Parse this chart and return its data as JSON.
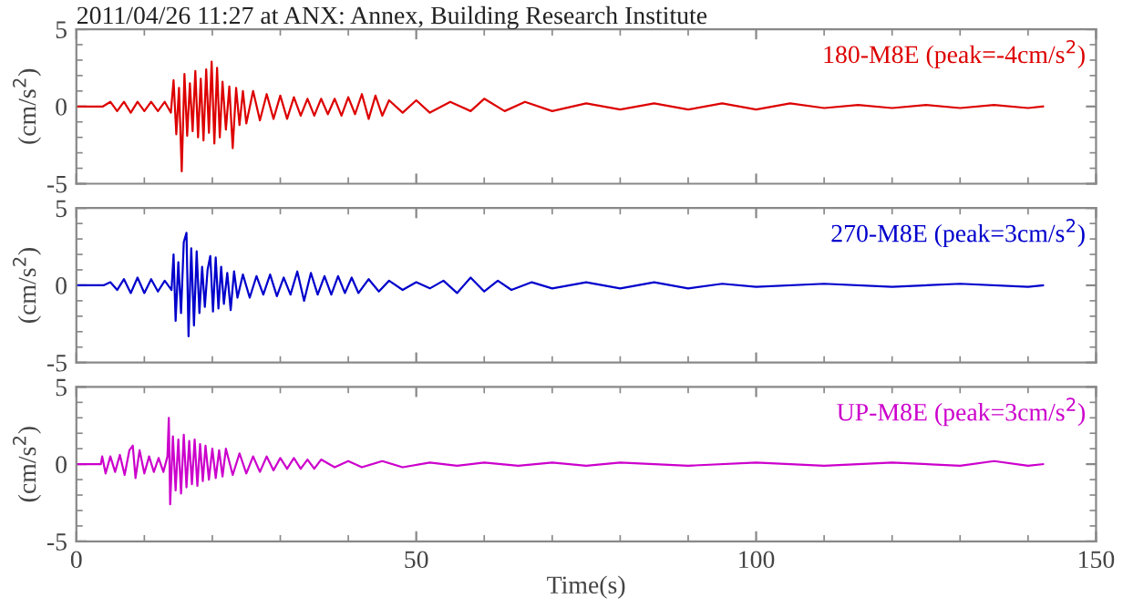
{
  "chart_data": [
    {
      "type": "line",
      "title": "2011/04/26 11:27 at ANX: Annex, Building Research Institute",
      "ylabel": "(cm/s$^{2}$)",
      "xlim": [
        0,
        150
      ],
      "ylim": [
        -5,
        5
      ],
      "xticks": [
        0,
        50,
        100,
        150
      ],
      "yticks": [
        -5,
        0,
        5
      ],
      "tick_labels": "y",
      "legend": false,
      "grid": false,
      "series": [
        {
          "name": "180-M8E (peak=-4cm/s$^{2}$)",
          "color": "#dd0000",
          "x": [
            0,
            3.9,
            5,
            6,
            7,
            8,
            9,
            10,
            11,
            12,
            13,
            13.9,
            14.3,
            14.7,
            15.1,
            15.5,
            15.9,
            16.3,
            16.7,
            17.1,
            17.5,
            17.9,
            18.3,
            18.7,
            19.1,
            19.5,
            19.9,
            20.3,
            20.7,
            21.1,
            21.5,
            22,
            22.5,
            23,
            23.5,
            24,
            24.5,
            25,
            26,
            27,
            28,
            29,
            30,
            31,
            32,
            33,
            34,
            35,
            36,
            37,
            38,
            39,
            40,
            41,
            42,
            43,
            44,
            45,
            46,
            48,
            50,
            52,
            55,
            58,
            60,
            63,
            66,
            70,
            75,
            80,
            85,
            90,
            95,
            100,
            105,
            110,
            115,
            120,
            125,
            130,
            135,
            140,
            142.2
          ],
          "values": [
            0,
            0,
            0.3,
            -0.3,
            0.3,
            -0.4,
            0.3,
            -0.3,
            0.3,
            -0.3,
            0.3,
            -0.4,
            1.7,
            -1.8,
            1.2,
            -4.2,
            2.1,
            -1.9,
            1.5,
            -1.6,
            2.3,
            -2.0,
            1.8,
            -2.2,
            2.4,
            -1.7,
            2.9,
            -2.4,
            2.5,
            -2.0,
            1.6,
            -1.5,
            1.3,
            -2.7,
            1.2,
            -1.2,
            1.0,
            -1.1,
            1.0,
            -0.9,
            0.8,
            -0.8,
            0.7,
            -0.8,
            0.6,
            -0.6,
            0.5,
            -0.6,
            0.5,
            -0.5,
            0.5,
            -0.6,
            0.6,
            -0.5,
            0.8,
            -0.8,
            0.7,
            -0.6,
            0.4,
            -0.4,
            0.4,
            -0.4,
            0.3,
            -0.3,
            0.5,
            -0.3,
            0.3,
            -0.3,
            0.2,
            -0.2,
            0.2,
            -0.2,
            0.2,
            -0.2,
            0.2,
            -0.1,
            0.1,
            -0.1,
            0.1,
            -0.1,
            0.1,
            -0.1,
            0
          ]
        }
      ]
    },
    {
      "type": "line",
      "ylabel": "(cm/s$^{2}$)",
      "xlim": [
        0,
        150
      ],
      "ylim": [
        -5,
        5
      ],
      "xticks": [
        0,
        50,
        100,
        150
      ],
      "yticks": [
        -5,
        0,
        5
      ],
      "tick_labels": "y",
      "legend": false,
      "grid": false,
      "series": [
        {
          "name": "270-M8E (peak=3cm/s$^{2}$)",
          "color": "#0000cc",
          "x": [
            0,
            4,
            5,
            6,
            7,
            8,
            9,
            10,
            11,
            12,
            13,
            14,
            14.3,
            14.6,
            15,
            15.4,
            15.8,
            16.2,
            16.5,
            16.9,
            17.3,
            17.7,
            18.1,
            18.5,
            18.9,
            19.3,
            19.7,
            20.1,
            20.5,
            20.9,
            21.3,
            21.7,
            22.2,
            22.7,
            23.2,
            23.7,
            24.5,
            25.5,
            26.5,
            27.5,
            28.5,
            29.5,
            30.5,
            31.5,
            32.5,
            33.5,
            34.5,
            35.5,
            36.5,
            37.5,
            38.5,
            39.5,
            40.5,
            41.5,
            43,
            44.5,
            46,
            48,
            50,
            52,
            54,
            56,
            58,
            60,
            62,
            64,
            67,
            70,
            75,
            80,
            85,
            90,
            95,
            100,
            110,
            120,
            130,
            140,
            142.2
          ],
          "values": [
            0,
            0,
            0.2,
            -0.3,
            0.4,
            -0.5,
            0.5,
            -0.5,
            0.4,
            -0.4,
            0.3,
            -0.3,
            2.0,
            -2.3,
            1.5,
            -1.8,
            2.8,
            3.4,
            -3.3,
            2.4,
            -2.6,
            2.2,
            -1.8,
            1.2,
            -1.4,
            1.0,
            1.9,
            -1.7,
            1.8,
            -1.5,
            1.2,
            -1.2,
            0.8,
            -1.6,
            0.9,
            -0.8,
            0.7,
            -0.8,
            0.6,
            -0.6,
            0.7,
            -0.7,
            0.5,
            -0.6,
            0.9,
            -1.0,
            0.8,
            -0.6,
            0.6,
            -0.6,
            0.6,
            -0.5,
            0.5,
            -0.5,
            0.4,
            -0.4,
            0.3,
            -0.3,
            0.2,
            -0.2,
            0.3,
            -0.5,
            0.5,
            -0.4,
            0.3,
            -0.3,
            0.2,
            -0.2,
            0.2,
            -0.2,
            0.2,
            -0.2,
            0.1,
            -0.1,
            0.1,
            -0.1,
            0.1,
            -0.1,
            0
          ]
        }
      ]
    },
    {
      "type": "line",
      "ylabel": "(cm/s$^{2}$)",
      "xlabel": "Time(s)",
      "xlim": [
        0,
        150
      ],
      "ylim": [
        -5,
        5
      ],
      "xticks": [
        0,
        50,
        100,
        150
      ],
      "yticks": [
        -5,
        0,
        5
      ],
      "legend": false,
      "grid": false,
      "series": [
        {
          "name": "UP-M8E (peak=3cm/s$^{2}$)",
          "color": "#cc00cc",
          "x": [
            0,
            3.6,
            3.8,
            4.3,
            5,
            5.7,
            6.4,
            7.1,
            7.8,
            8.3,
            8.7,
            9.3,
            10,
            10.7,
            11.4,
            12.1,
            12.8,
            13.4,
            13.6,
            13.8,
            14.2,
            14.6,
            15,
            15.4,
            15.8,
            16.2,
            16.6,
            17,
            17.4,
            17.8,
            18.2,
            18.6,
            19,
            19.5,
            20,
            20.5,
            21,
            21.5,
            22,
            23,
            24,
            25,
            26,
            27,
            28,
            29,
            30,
            31,
            32,
            33,
            34,
            35,
            36,
            38,
            40,
            42,
            45,
            48,
            52,
            56,
            60,
            65,
            70,
            75,
            80,
            90,
            100,
            110,
            120,
            130,
            135,
            140,
            142.2
          ],
          "values": [
            0,
            0,
            0.5,
            -0.6,
            0.5,
            -0.5,
            0.6,
            -0.7,
            0.9,
            1.2,
            -0.9,
            0.9,
            -0.6,
            0.5,
            -0.5,
            0.4,
            -0.5,
            0.5,
            3.0,
            -2.6,
            1.8,
            -1.7,
            1.6,
            -1.9,
            1.9,
            -1.5,
            1.5,
            -1.3,
            1.6,
            -1.4,
            1.3,
            -1.1,
            1.2,
            -1.0,
            1.0,
            -0.9,
            0.9,
            -0.8,
            1.0,
            -0.7,
            0.7,
            -0.6,
            0.5,
            -0.5,
            0.5,
            -0.4,
            0.4,
            -0.3,
            0.4,
            -0.3,
            0.3,
            -0.3,
            0.3,
            -0.2,
            0.2,
            -0.2,
            0.2,
            -0.2,
            0.1,
            -0.1,
            0.1,
            -0.1,
            0.1,
            -0.1,
            0.1,
            -0.1,
            0.1,
            -0.1,
            0.1,
            -0.1,
            0.2,
            -0.1,
            0
          ]
        }
      ]
    }
  ]
}
